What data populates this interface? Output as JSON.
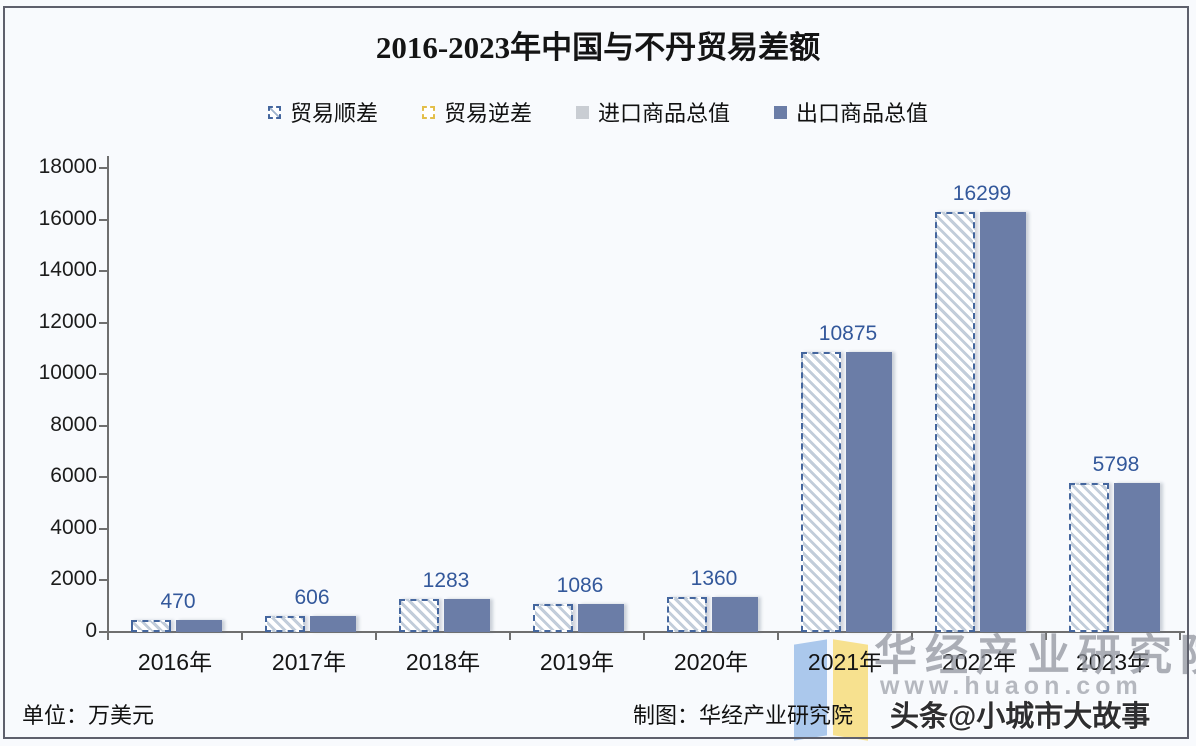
{
  "chart_data": {
    "type": "bar",
    "title": "2016-2023年中国与不丹贸易差额",
    "unit_note": "单位：万美元",
    "credit": "制图：华经产业研究院",
    "categories": [
      "2016年",
      "2017年",
      "2018年",
      "2019年",
      "2020年",
      "2021年",
      "2022年",
      "2023年"
    ],
    "series": [
      {
        "name": "贸易顺差",
        "style": "hatched_blue",
        "values": [
          470,
          606,
          1283,
          1086,
          1360,
          10875,
          16299,
          5798
        ]
      },
      {
        "name": "贸易逆差",
        "style": "hatched_yellow",
        "values": [
          0,
          0,
          0,
          0,
          0,
          0,
          0,
          0
        ]
      },
      {
        "name": "进口商品总值",
        "style": "solid_gray",
        "values": [
          0,
          0,
          0,
          0,
          0,
          0,
          0,
          0
        ]
      },
      {
        "name": "出口商品总值",
        "style": "solid_blue",
        "values": [
          470,
          606,
          1283,
          1086,
          1360,
          10875,
          16299,
          5798
        ]
      }
    ],
    "data_labels": [
      "470",
      "606",
      "1283",
      "1086",
      "1360",
      "10875",
      "16299",
      "5798"
    ],
    "ylim": [
      0,
      18000
    ],
    "yticks": [
      0,
      2000,
      4000,
      6000,
      8000,
      10000,
      12000,
      14000,
      16000,
      18000
    ],
    "grid": false,
    "legend_position": "top-center",
    "colors": {
      "solid_blue": "#6b7da7",
      "solid_gray": "#c9cdd3",
      "hatch_border": "#44669e",
      "hatch_stripe": "#c2cdda",
      "deficit_border": "#e3bf4a",
      "data_label": "#33589b",
      "axis": "#6f6f6f",
      "tick_label": "#1c1c1c",
      "watermark_gray": "#8e929c"
    }
  },
  "watermarks": {
    "brand_text": "华经产业研究院",
    "brand_url": "www.huaon.com",
    "social_handle": "头条@小城市大故事",
    "logo": "huajing-open-book-logo"
  }
}
